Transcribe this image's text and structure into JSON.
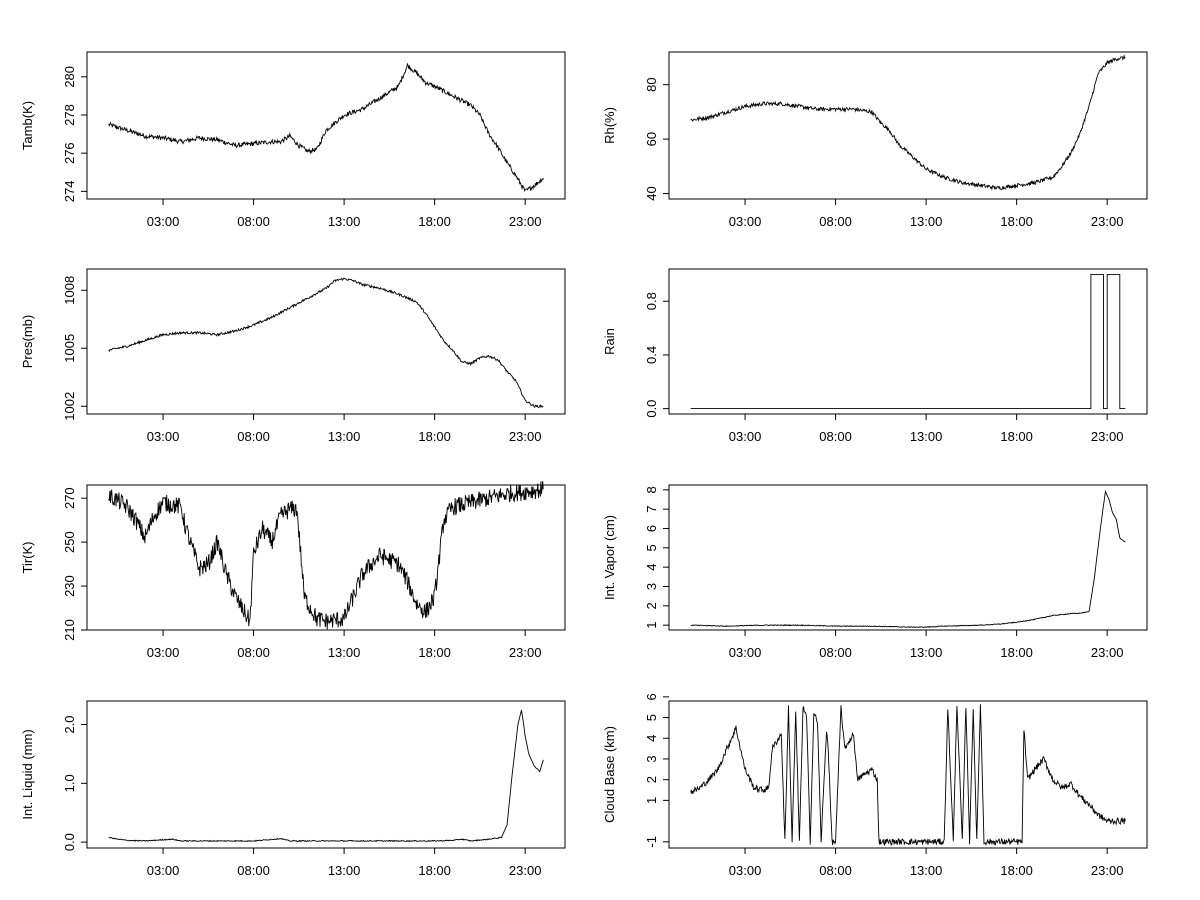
{
  "figure": {
    "x_tick_labels": [
      "03:00",
      "08:00",
      "13:00",
      "18:00",
      "23:00"
    ],
    "x_tick_hours": [
      3,
      8,
      13,
      18,
      23
    ],
    "xlim": [
      -1.2,
      25.2
    ]
  },
  "chart_data": [
    {
      "id": "tamb",
      "type": "line",
      "ylabel": "Tamb(K)",
      "ylim": [
        273.6,
        281.3
      ],
      "yticks": [
        274,
        276,
        278,
        280
      ],
      "ytick_labels": [
        "274",
        "276",
        "278",
        "280"
      ],
      "noise": 0.12,
      "x": [
        0,
        1,
        2,
        3,
        4,
        5,
        6,
        7,
        8,
        9,
        9.5,
        10,
        10.5,
        11,
        11.5,
        12,
        13,
        14,
        15,
        16,
        16.5,
        17,
        17.5,
        18,
        19,
        20,
        20.5,
        21,
        21.5,
        22,
        22.5,
        23,
        23.5,
        24
      ],
      "values": [
        277.5,
        277.2,
        276.9,
        276.8,
        276.6,
        276.8,
        276.7,
        276.4,
        276.5,
        276.6,
        276.6,
        276.9,
        276.4,
        276.1,
        276.2,
        277.2,
        278.0,
        278.3,
        278.9,
        279.5,
        280.6,
        280.2,
        279.7,
        279.5,
        279.0,
        278.5,
        278.0,
        277.0,
        276.3,
        275.5,
        274.8,
        274.0,
        274.3,
        274.7
      ]
    },
    {
      "id": "rh",
      "type": "line",
      "ylabel": "Rh(%)",
      "ylim": [
        38,
        92
      ],
      "yticks": [
        40,
        60,
        80
      ],
      "ytick_labels": [
        "40",
        "60",
        "80"
      ],
      "noise": 0.7,
      "x": [
        0,
        1,
        2,
        3,
        4,
        5,
        6,
        7,
        8,
        9,
        10,
        10.5,
        11,
        11.5,
        12,
        12.5,
        13,
        14,
        15,
        16,
        17,
        18,
        19,
        20,
        20.5,
        21,
        21.5,
        22,
        22.5,
        23,
        23.5,
        24
      ],
      "values": [
        67,
        68,
        70,
        72,
        73,
        73,
        72,
        71,
        71,
        71,
        70,
        66,
        63,
        58,
        55,
        52,
        49,
        46,
        44,
        43,
        42,
        43,
        44,
        46,
        50,
        55,
        62,
        72,
        84,
        88,
        89.5,
        90
      ]
    },
    {
      "id": "pres",
      "type": "line",
      "ylabel": "Pres(mb)",
      "ylim": [
        1001.6,
        1009.1
      ],
      "yticks": [
        1002,
        1005,
        1008
      ],
      "ytick_labels": [
        "1002",
        "1005",
        "1008"
      ],
      "noise": 0.06,
      "x": [
        0,
        1,
        2,
        3,
        4,
        5,
        6,
        7,
        8,
        9,
        10,
        11,
        12,
        12.5,
        13,
        13.5,
        14,
        15,
        16,
        17,
        17.5,
        18,
        18.5,
        19,
        19.5,
        20,
        20.5,
        21,
        21.5,
        22,
        22.5,
        23,
        23.5,
        24
      ],
      "values": [
        1004.9,
        1005.1,
        1005.4,
        1005.7,
        1005.8,
        1005.8,
        1005.7,
        1005.9,
        1006.2,
        1006.6,
        1007.1,
        1007.6,
        1008.1,
        1008.5,
        1008.6,
        1008.5,
        1008.3,
        1008.1,
        1007.8,
        1007.4,
        1006.8,
        1006.1,
        1005.4,
        1004.9,
        1004.3,
        1004.2,
        1004.5,
        1004.6,
        1004.4,
        1003.8,
        1003.3,
        1002.3,
        1002.0,
        1002.0
      ]
    },
    {
      "id": "rain",
      "type": "line",
      "ylabel": "Rain",
      "ylim": [
        -0.04,
        1.04
      ],
      "yticks": [
        0.0,
        0.4,
        0.8
      ],
      "ytick_labels": [
        "0.0",
        "0.4",
        "0.8"
      ],
      "noise": 0,
      "x": [
        0,
        22.1,
        22.1,
        22.8,
        22.8,
        23.0,
        23.0,
        23.7,
        23.7,
        24
      ],
      "values": [
        0,
        0,
        1,
        1,
        0,
        0,
        1,
        1,
        0,
        0
      ]
    },
    {
      "id": "tir",
      "type": "line",
      "ylabel": "Tir(K)",
      "ylim": [
        210,
        276
      ],
      "yticks": [
        210,
        230,
        250,
        270
      ],
      "ytick_labels": [
        "210",
        "230",
        "250",
        "270"
      ],
      "noise": 4,
      "x": [
        0,
        0.5,
        1,
        1.5,
        2,
        2.5,
        3,
        4,
        4.2,
        4.5,
        5,
        5.5,
        6,
        6.5,
        7,
        7.5,
        7.8,
        8,
        8.5,
        9,
        9.5,
        10,
        10.4,
        10.8,
        11.5,
        12,
        13,
        13.5,
        14,
        14.5,
        15,
        16,
        16.5,
        17,
        17.5,
        18,
        18.5,
        19,
        20,
        21,
        22,
        23,
        24
      ],
      "values": [
        271,
        269,
        266,
        260,
        252,
        262,
        268,
        266,
        258,
        250,
        238,
        240,
        250,
        235,
        225,
        218,
        214,
        245,
        256,
        250,
        262,
        265,
        265,
        225,
        215,
        214,
        215,
        225,
        235,
        240,
        244,
        240,
        232,
        222,
        218,
        225,
        260,
        266,
        268,
        270,
        272,
        273,
        274
      ]
    },
    {
      "id": "vapor",
      "type": "line",
      "ylabel": "Int. Vapor (cm)",
      "ylim": [
        0.75,
        8.25
      ],
      "yticks": [
        1,
        2,
        3,
        4,
        5,
        6,
        7,
        8
      ],
      "ytick_labels": [
        "1",
        "2",
        "3",
        "4",
        "5",
        "6",
        "7",
        "8"
      ],
      "noise": 0.02,
      "x": [
        0,
        2,
        4,
        6,
        8,
        10,
        12,
        13,
        14,
        16,
        17,
        18,
        19,
        20,
        21,
        21.5,
        22,
        22.3,
        22.6,
        22.9,
        23.1,
        23.3,
        23.5,
        23.7,
        24
      ],
      "values": [
        1.0,
        0.95,
        1.0,
        1.0,
        0.95,
        0.95,
        0.9,
        0.9,
        0.95,
        1.0,
        1.05,
        1.15,
        1.3,
        1.5,
        1.6,
        1.62,
        1.7,
        3.5,
        5.8,
        7.9,
        7.5,
        6.8,
        6.5,
        5.5,
        5.3
      ]
    },
    {
      "id": "liquid",
      "type": "line",
      "ylabel": "Int. Liquid (mm)",
      "ylim": [
        -0.1,
        2.4
      ],
      "yticks": [
        0.0,
        1.0,
        2.0
      ],
      "ytick_labels": [
        "0.0",
        "1.0",
        "2.0"
      ],
      "noise": 0.008,
      "x": [
        0,
        0.5,
        1,
        2,
        3,
        3.5,
        4,
        6,
        8,
        9.5,
        10,
        12,
        14,
        16,
        18,
        19,
        19.5,
        20,
        21,
        21.7,
        22,
        22.3,
        22.6,
        22.8,
        23.0,
        23.2,
        23.5,
        23.8,
        24
      ],
      "values": [
        0.08,
        0.05,
        0.03,
        0.02,
        0.04,
        0.05,
        0.02,
        0.02,
        0.02,
        0.06,
        0.02,
        0.02,
        0.02,
        0.02,
        0.02,
        0.03,
        0.05,
        0.02,
        0.05,
        0.08,
        0.3,
        1.2,
        2.0,
        2.25,
        1.8,
        1.5,
        1.3,
        1.2,
        1.4
      ]
    },
    {
      "id": "cloudbase",
      "type": "line",
      "ylabel": "Cloud Base (km)",
      "ylim": [
        -1.3,
        5.8
      ],
      "yticks": [
        -1,
        1,
        2,
        3,
        4,
        5,
        6
      ],
      "ytick_labels": [
        "-1",
        "1",
        "2",
        "3",
        "4",
        "5",
        "6"
      ],
      "noise": 0.15,
      "x": [
        0,
        0.5,
        1,
        1.5,
        2,
        2.5,
        3,
        3.5,
        4,
        4.3,
        4.5,
        5.0,
        5.2,
        5.4,
        5.6,
        5.8,
        6.0,
        6.2,
        6.4,
        6.6,
        6.8,
        7.0,
        7.2,
        7.5,
        7.6,
        7.8,
        8,
        8.3,
        8.5,
        8.7,
        9.0,
        9.2,
        9.5,
        10,
        10.3,
        10.4,
        12,
        14,
        14.2,
        14.5,
        14.7,
        15.0,
        15.2,
        15.4,
        15.6,
        15.8,
        16,
        16.2,
        16.4,
        17.5,
        18.3,
        18.4,
        18.6,
        19,
        19.5,
        20,
        20.5,
        21,
        21.5,
        22,
        22.5,
        23,
        23.5,
        24
      ],
      "values": [
        1.4,
        1.6,
        2.0,
        2.5,
        3.5,
        4.5,
        2.5,
        1.6,
        1.5,
        1.6,
        3.5,
        4.2,
        -1,
        5.5,
        -1,
        5.3,
        -1,
        5.5,
        5.0,
        -1,
        5.2,
        4.8,
        -1,
        4.4,
        3.5,
        -1,
        -1,
        5.5,
        3.5,
        3.8,
        4.2,
        2.0,
        2.2,
        2.5,
        2.0,
        -1,
        -1,
        -1,
        5.5,
        -1,
        5.7,
        -1,
        5.6,
        -1,
        5.5,
        -1,
        5.7,
        -1,
        -1,
        -1,
        -1,
        4.5,
        2.0,
        2.5,
        3.0,
        2.0,
        1.6,
        1.8,
        1.2,
        0.8,
        0.3,
        0.0,
        0.0,
        0.0
      ]
    }
  ]
}
